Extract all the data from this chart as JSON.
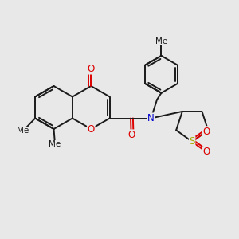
{
  "bg": "#e8e8e8",
  "lw": 1.4,
  "afs": 8.5,
  "sfs": 7.5,
  "colors": {
    "bond": "#1a1a1a",
    "O": "#dd0000",
    "N": "#0000cc",
    "S": "#aaaa00",
    "C": "#1a1a1a"
  },
  "xlim": [
    0,
    10
  ],
  "ylim": [
    0,
    10
  ],
  "figsize": [
    3.0,
    3.0
  ],
  "dpi": 100
}
